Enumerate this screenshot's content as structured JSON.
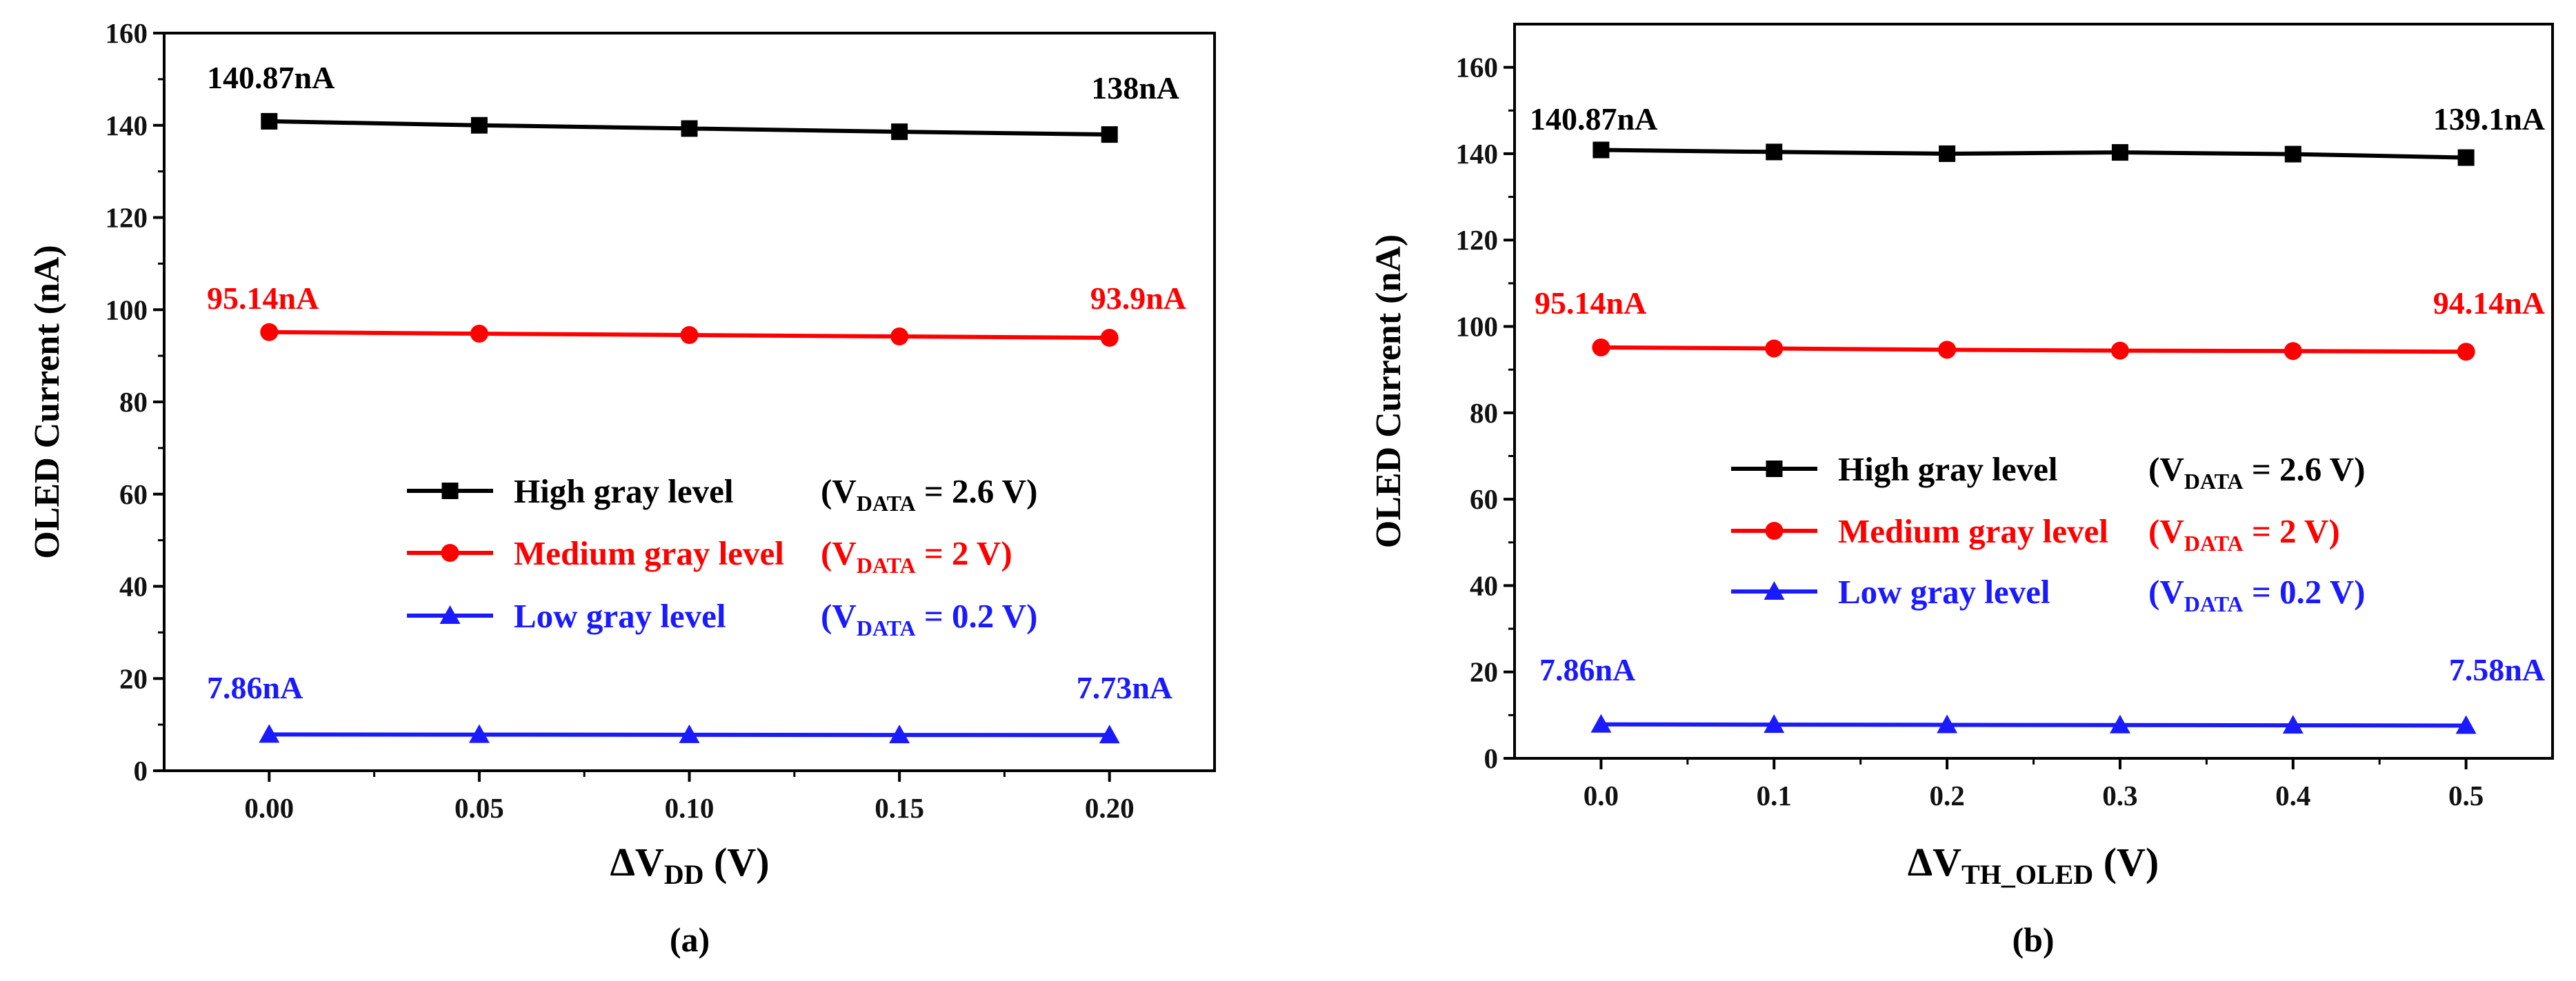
{
  "chart_data": [
    {
      "type": "line",
      "panel_label": "(a)",
      "xlabel": {
        "prefix": "ΔV",
        "sub": "DD",
        "suffix": " (V)"
      },
      "ylabel": "OLED Current  (nA)",
      "x": [
        0.0,
        0.05,
        0.1,
        0.15,
        0.2
      ],
      "x_ticks": [
        "0.00",
        "0.05",
        "0.10",
        "0.15",
        "0.20"
      ],
      "xlim": [
        -0.025,
        0.225
      ],
      "ylim": [
        0,
        160
      ],
      "y_ticks": [
        "0",
        "20",
        "40",
        "60",
        "80",
        "100",
        "120",
        "140",
        "160"
      ],
      "series": [
        {
          "key": "high",
          "name": "High gray level",
          "condition": {
            "pre": "(V",
            "sub": "DATA",
            "post": " = 2.6 V)"
          },
          "color": "#000000",
          "marker": "square",
          "values": [
            140.87,
            140.0,
            139.3,
            138.6,
            138.0
          ],
          "labels": [
            "140.87nA",
            "138nA"
          ]
        },
        {
          "key": "medium",
          "name": "Medium gray level",
          "condition": {
            "pre": "(V",
            "sub": "DATA",
            "post": " = 2 V)"
          },
          "color": "#ff0000",
          "marker": "circle",
          "values": [
            95.14,
            94.8,
            94.5,
            94.2,
            93.9
          ],
          "labels": [
            "95.14nA",
            "93.9nA"
          ]
        },
        {
          "key": "low",
          "name": "Low gray level",
          "condition": {
            "pre": "(V",
            "sub": "DATA",
            "post": " = 0.2 V)"
          },
          "color": "#1a1aff",
          "marker": "triangle",
          "values": [
            7.86,
            7.83,
            7.8,
            7.76,
            7.73
          ],
          "labels": [
            "7.86nA",
            "7.73nA"
          ]
        }
      ]
    },
    {
      "type": "line",
      "panel_label": "(b)",
      "xlabel": {
        "prefix": "ΔV",
        "sub": "TH_OLED",
        "suffix": " (V)"
      },
      "ylabel": "OLED Current  (nA)",
      "x": [
        0.0,
        0.1,
        0.2,
        0.3,
        0.4,
        0.5
      ],
      "x_ticks": [
        "0.0",
        "0.1",
        "0.2",
        "0.3",
        "0.4",
        "0.5"
      ],
      "xlim": [
        -0.05,
        0.55
      ],
      "ylim": [
        0,
        170
      ],
      "y_ticks": [
        "0",
        "20",
        "40",
        "60",
        "80",
        "100",
        "120",
        "140",
        "160"
      ],
      "series": [
        {
          "key": "high",
          "name": "High gray level",
          "condition": {
            "pre": "(V",
            "sub": "DATA",
            "post": " = 2.6 V)"
          },
          "color": "#000000",
          "marker": "square",
          "values": [
            140.87,
            140.4,
            140.0,
            140.3,
            139.9,
            139.1
          ],
          "labels": [
            "140.87nA",
            "139.1nA"
          ]
        },
        {
          "key": "medium",
          "name": "Medium gray level",
          "condition": {
            "pre": "(V",
            "sub": "DATA",
            "post": " = 2 V)"
          },
          "color": "#ff0000",
          "marker": "circle",
          "values": [
            95.14,
            94.9,
            94.6,
            94.4,
            94.3,
            94.14
          ],
          "labels": [
            "95.14nA",
            "94.14nA"
          ]
        },
        {
          "key": "low",
          "name": "Low gray level",
          "condition": {
            "pre": "(V",
            "sub": "DATA",
            "post": " = 0.2 V)"
          },
          "color": "#1a1aff",
          "marker": "triangle",
          "values": [
            7.86,
            7.8,
            7.75,
            7.7,
            7.64,
            7.58
          ],
          "labels": [
            "7.86nA",
            "7.58nA"
          ]
        }
      ]
    }
  ]
}
